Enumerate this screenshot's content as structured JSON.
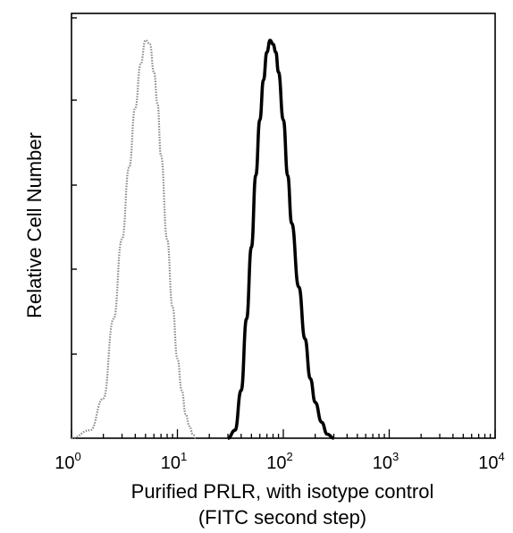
{
  "chart_data": {
    "type": "line",
    "xscale": "log",
    "xlim": [
      1,
      10000
    ],
    "ylim": [
      0,
      1
    ],
    "ylabel": "Relative Cell Number",
    "xlabel_line1": "Purified PRLR, with isotype control",
    "xlabel_line2": "(FITC second step)",
    "x_ticks": [
      {
        "base": "10",
        "exp": "0",
        "value": 1
      },
      {
        "base": "10",
        "exp": "1",
        "value": 10
      },
      {
        "base": "10",
        "exp": "2",
        "value": 100
      },
      {
        "base": "10",
        "exp": "3",
        "value": 1000
      },
      {
        "base": "10",
        "exp": "4",
        "value": 10000
      }
    ],
    "y_ticks_labeled": false,
    "series": [
      {
        "style": "dotted-gray",
        "color": "#8a8a8a",
        "x": [
          1.0,
          1.5,
          2.0,
          2.5,
          3.0,
          3.5,
          4.0,
          4.5,
          5.0,
          5.5,
          6.0,
          6.5,
          7.0,
          8.0,
          9.0,
          10.0,
          11.0,
          12.0,
          13.0,
          14.0,
          15.0
        ],
        "y": [
          0.0,
          0.02,
          0.1,
          0.3,
          0.5,
          0.68,
          0.83,
          0.94,
          1.0,
          0.99,
          0.92,
          0.84,
          0.71,
          0.5,
          0.33,
          0.2,
          0.12,
          0.06,
          0.03,
          0.01,
          0.0
        ]
      },
      {
        "style": "solid-black",
        "color": "#000000",
        "x": [
          30,
          35,
          40,
          45,
          50,
          55,
          60,
          65,
          70,
          75,
          80,
          85,
          90,
          100,
          110,
          120,
          140,
          160,
          180,
          200,
          230,
          260,
          300
        ],
        "y": [
          0.0,
          0.02,
          0.12,
          0.3,
          0.48,
          0.66,
          0.8,
          0.9,
          0.97,
          1.0,
          0.99,
          0.97,
          0.92,
          0.8,
          0.66,
          0.54,
          0.38,
          0.25,
          0.15,
          0.09,
          0.04,
          0.01,
          0.0
        ]
      }
    ],
    "grid": false,
    "legend": "none"
  }
}
